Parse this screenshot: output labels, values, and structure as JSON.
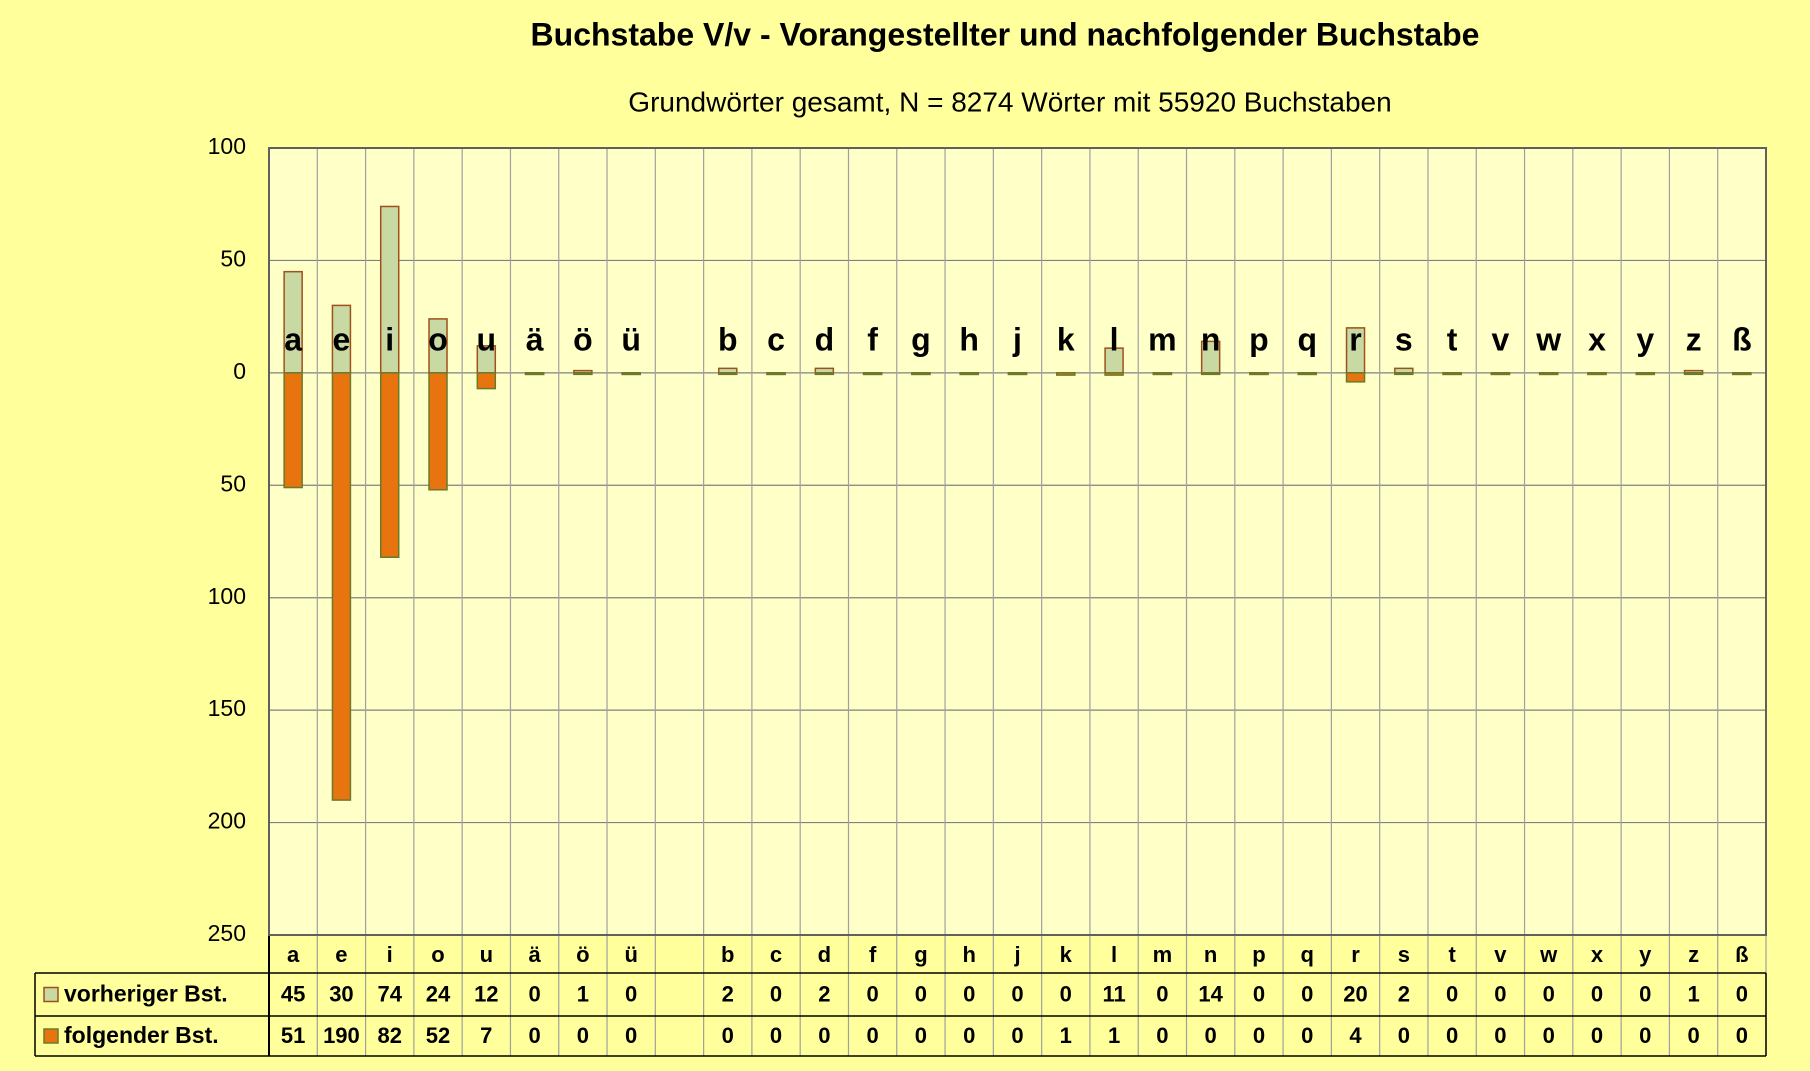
{
  "chart_data": {
    "type": "bar",
    "title": "Buchstabe V/v - Vorangestellter und nachfolgender Buchstabe",
    "subtitle": "Grundwörter gesamt,  N = 8274 Wörter mit 55920 Buchstaben",
    "categories": [
      "a",
      "e",
      "i",
      "o",
      "u",
      "ä",
      "ö",
      "ü",
      null,
      "b",
      "c",
      "d",
      "f",
      "g",
      "h",
      "j",
      "k",
      "l",
      "m",
      "n",
      "p",
      "q",
      "r",
      "s",
      "t",
      "v",
      "w",
      "x",
      "y",
      "z",
      "ß"
    ],
    "series": [
      {
        "name": "vorheriger Bst.",
        "color": "#c9d9a3",
        "edge": "#a0501a",
        "values": [
          45,
          30,
          74,
          24,
          12,
          0,
          1,
          0,
          null,
          2,
          0,
          2,
          0,
          0,
          0,
          0,
          0,
          11,
          0,
          14,
          0,
          0,
          20,
          2,
          0,
          0,
          0,
          0,
          0,
          1,
          0
        ]
      },
      {
        "name": "folgender Bst.",
        "color": "#e8740f",
        "edge": "#6a7a2a",
        "values": [
          -51,
          -190,
          -82,
          -52,
          -7,
          0,
          0,
          0,
          null,
          0,
          0,
          0,
          0,
          0,
          0,
          0,
          -1,
          -1,
          0,
          0,
          0,
          0,
          -4,
          0,
          0,
          0,
          0,
          0,
          0,
          0,
          0
        ],
        "value_labels": [
          "51",
          "190",
          "82",
          "52",
          "7",
          "0",
          "0",
          "0",
          null,
          "0",
          "0",
          "0",
          "0",
          "0",
          "0",
          "0",
          "1",
          "1",
          "0",
          "0",
          "0",
          "0",
          "4",
          "0",
          "0",
          "0",
          "0",
          "0",
          "0",
          "0",
          "0"
        ]
      }
    ],
    "ylim": [
      -250,
      100
    ],
    "yticks": [
      100,
      50,
      0,
      {
        "value": -50,
        "label": "50"
      },
      {
        "value": -100,
        "label": "100"
      },
      {
        "value": -150,
        "label": "150"
      },
      {
        "value": -200,
        "label": "200"
      },
      {
        "value": -250,
        "label": "250"
      }
    ],
    "grid": true
  }
}
